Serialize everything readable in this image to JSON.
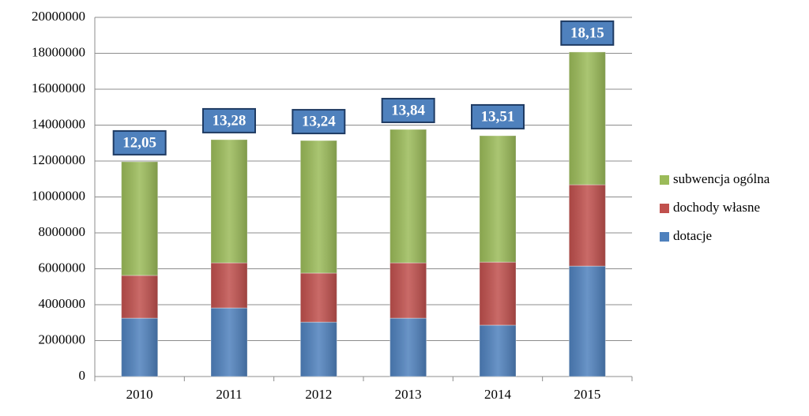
{
  "chart_data": {
    "type": "stacked_bar",
    "categories": [
      "2010",
      "2011",
      "2012",
      "2013",
      "2014",
      "2015"
    ],
    "series": [
      {
        "name": "dotacje",
        "color": "#4f81bd",
        "values": [
          3250000,
          3820000,
          3030000,
          3250000,
          2860000,
          6150000
        ]
      },
      {
        "name": "dochody własne",
        "color": "#c0504d",
        "values": [
          2380000,
          2510000,
          2730000,
          3080000,
          3510000,
          4530000
        ]
      },
      {
        "name": "subwencja ogólna",
        "color": "#9bbb59",
        "values": [
          6330000,
          6860000,
          7380000,
          7430000,
          7040000,
          7390000
        ]
      }
    ],
    "annotations": [
      "12,05",
      "13,28",
      "13,24",
      "13,84",
      "13,51",
      "18,15"
    ],
    "ylim": [
      0,
      20000000
    ],
    "yticks": [
      0,
      2000000,
      4000000,
      6000000,
      8000000,
      10000000,
      12000000,
      14000000,
      16000000,
      18000000,
      20000000
    ],
    "grid": true,
    "legend": "right"
  }
}
